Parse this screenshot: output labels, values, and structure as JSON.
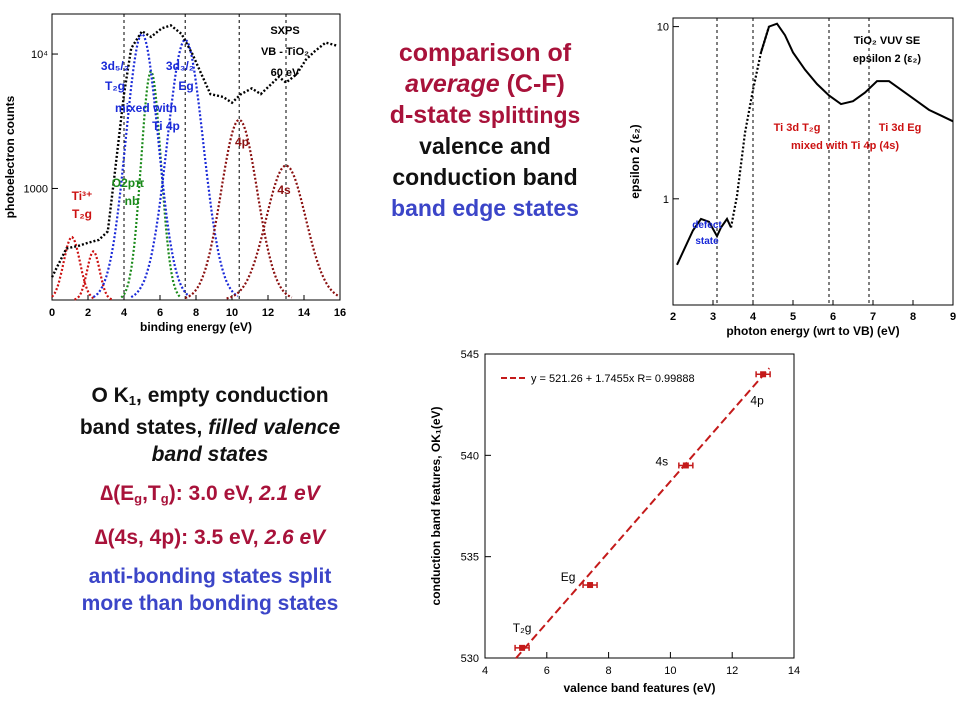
{
  "title": {
    "line1": "comparison of",
    "line2_italic": "average",
    "line2_rest": " (C-F)",
    "line3_a": "d-state",
    "line3_b": " splittings",
    "line4": "valence and",
    "line5": "conduction band",
    "line6": "band edge states"
  },
  "notes": {
    "line1_a": "O K",
    "line1_sub": "1",
    "line1_b": ", empty conduction",
    "line2_a": "band states, ",
    "line2_b": "filled valence",
    "line3": "band states",
    "delta1_label_a": "(E",
    "delta1_sub1": "g",
    "delta1_label_b": ",T",
    "delta1_sub2": "g",
    "delta1_label_c": "): 3.0 eV, ",
    "delta1_italic": "2.1 eV",
    "delta2_label": "(4s, 4p): 3.5 eV, ",
    "delta2_italic": "2.6 eV",
    "conclusion_line1": "anti-bonding states split",
    "conclusion_line2": "more than bonding states",
    "delta_symbol": "∆"
  },
  "chart_data": [
    {
      "type": "line",
      "xlabel": "binding energy (eV)",
      "ylabel": "photoelectron counts",
      "xlim": [
        0,
        16
      ],
      "xticks": [
        "0",
        "2",
        "4",
        "6",
        "8",
        "10",
        "12",
        "14",
        "16"
      ],
      "yscale": "log",
      "yticks": [
        "10⁴",
        "1000"
      ],
      "inset_text": [
        "SXPS",
        "VB - TiO₂",
        "60 eV"
      ],
      "peak_labels": [
        {
          "text": "Ti³⁺",
          "color": "#cc1111"
        },
        {
          "text": "T₂g",
          "color": "#cc1111"
        },
        {
          "text": "O2pπ",
          "color": "#1a8a1a"
        },
        {
          "text": "nb",
          "color": "#1a8a1a"
        },
        {
          "text": "3d₅/₂",
          "color": "#1a2ad8"
        },
        {
          "text": "3d₃/₂",
          "color": "#1a2ad8"
        },
        {
          "text": "T₂g",
          "color": "#1a2ad8"
        },
        {
          "text": "Eg",
          "color": "#1a2ad8"
        },
        {
          "text": "mixed with",
          "color": "#1a2ad8"
        },
        {
          "text": "Ti 4p",
          "color": "#1a2ad8"
        },
        {
          "text": "4p",
          "color": "#8a1010"
        },
        {
          "text": "4s",
          "color": "#8a1010"
        }
      ],
      "dashed_lines_x": [
        4.0,
        7.4,
        10.4,
        13.0
      ],
      "series": [
        {
          "role": "total",
          "color": "#000000",
          "x": [
            0,
            0.8,
            1.5,
            2.0,
            2.6,
            3.1,
            3.5,
            4.0,
            4.4,
            5.0,
            5.5,
            6.1,
            6.6,
            7.2,
            7.8,
            8.3,
            8.8,
            9.5,
            10.0,
            10.5,
            11.1,
            11.6,
            12.1,
            12.6,
            13.0,
            13.6,
            14.1,
            14.6,
            15.2,
            15.8
          ],
          "y": [
            0.08,
            0.18,
            0.19,
            0.2,
            0.21,
            0.24,
            0.45,
            0.72,
            0.88,
            0.94,
            0.92,
            0.95,
            0.96,
            0.93,
            0.86,
            0.79,
            0.72,
            0.71,
            0.69,
            0.72,
            0.74,
            0.72,
            0.75,
            0.78,
            0.76,
            0.79,
            0.84,
            0.87,
            0.9,
            0.89
          ]
        },
        {
          "role": "Ti3+ T2g peak 1",
          "color": "#cc1111",
          "center": 1.1,
          "width": 0.45,
          "height": 0.22
        },
        {
          "role": "Ti3+ T2g peak 2",
          "color": "#cc1111",
          "center": 2.3,
          "width": 0.35,
          "height": 0.17
        },
        {
          "role": "O2p nb",
          "color": "#1a8a1a",
          "center": 5.5,
          "width": 0.55,
          "height": 0.8
        },
        {
          "role": "3d5/2 T2g",
          "color": "#1a2ad8",
          "center": 5.0,
          "width": 0.9,
          "height": 0.93
        },
        {
          "role": "3d3/2 Eg",
          "color": "#1a2ad8",
          "center": 7.4,
          "width": 1.0,
          "height": 0.91
        },
        {
          "role": "4p",
          "color": "#8a1010",
          "center": 10.4,
          "width": 1.0,
          "height": 0.63
        },
        {
          "role": "4s",
          "color": "#8a1010",
          "center": 13.0,
          "width": 1.1,
          "height": 0.47
        }
      ]
    },
    {
      "type": "line",
      "xlabel": "photon energy (wrt to VB) (eV)",
      "ylabel": "epsilon 2 (ε₂)",
      "xlim": [
        2,
        9
      ],
      "xticks": [
        "2",
        "3",
        "4",
        "5",
        "6",
        "7",
        "8",
        "9"
      ],
      "yscale": "log",
      "yticks": [
        "10",
        "1"
      ],
      "inset_text": [
        "TiO₂ VUV SE",
        "epsilon 2 (ε₂)"
      ],
      "annotations": [
        {
          "text": "Ti 3d T₂g",
          "color": "#cc1111"
        },
        {
          "text": "Ti 3d Eg",
          "color": "#cc1111"
        },
        {
          "text": "mixed with Ti 4p (4s)",
          "color": "#cc1111"
        },
        {
          "text": "defect",
          "color": "#1a2ad8"
        },
        {
          "text": "state",
          "color": "#1a2ad8"
        }
      ],
      "dashed_lines_x": [
        3.1,
        4.0,
        5.9,
        6.9
      ],
      "series": [
        {
          "color": "#000000",
          "x": [
            2.1,
            2.3,
            2.5,
            2.7,
            2.9,
            3.1,
            3.2,
            3.35,
            3.45,
            3.6,
            3.8,
            4.0,
            4.2,
            4.4,
            4.6,
            4.8,
            5.0,
            5.3,
            5.6,
            5.9,
            6.2,
            6.5,
            6.8,
            7.1,
            7.4,
            7.8,
            8.1,
            8.4,
            8.7,
            9.0
          ],
          "y": [
            0.14,
            0.2,
            0.26,
            0.3,
            0.29,
            0.24,
            0.27,
            0.3,
            0.27,
            0.38,
            0.6,
            0.75,
            0.88,
            0.97,
            0.98,
            0.94,
            0.88,
            0.82,
            0.77,
            0.73,
            0.7,
            0.71,
            0.74,
            0.78,
            0.78,
            0.74,
            0.71,
            0.68,
            0.66,
            0.64
          ]
        }
      ]
    },
    {
      "type": "scatter",
      "xlabel": "valence band features (eV)",
      "ylabel": "conduction band features, OK₁(eV)",
      "xlim": [
        4,
        14
      ],
      "ylim": [
        530,
        545
      ],
      "xticks": [
        "4",
        "6",
        "8",
        "10",
        "12",
        "14"
      ],
      "yticks": [
        "530",
        "535",
        "540",
        "545"
      ],
      "legend": "y = 521.26 + 1.7455x   R= 0.99888",
      "fit": {
        "intercept": 521.26,
        "slope": 1.7455,
        "R": 0.99888
      },
      "points": [
        {
          "x": 5.2,
          "y": 530.5,
          "label": "T₂g"
        },
        {
          "x": 7.4,
          "y": 533.6,
          "label": "Eg"
        },
        {
          "x": 10.5,
          "y": 539.5,
          "label": "4s"
        },
        {
          "x": 13.0,
          "y": 544.0,
          "label": "4p"
        }
      ],
      "color": "#c41a1a"
    }
  ]
}
